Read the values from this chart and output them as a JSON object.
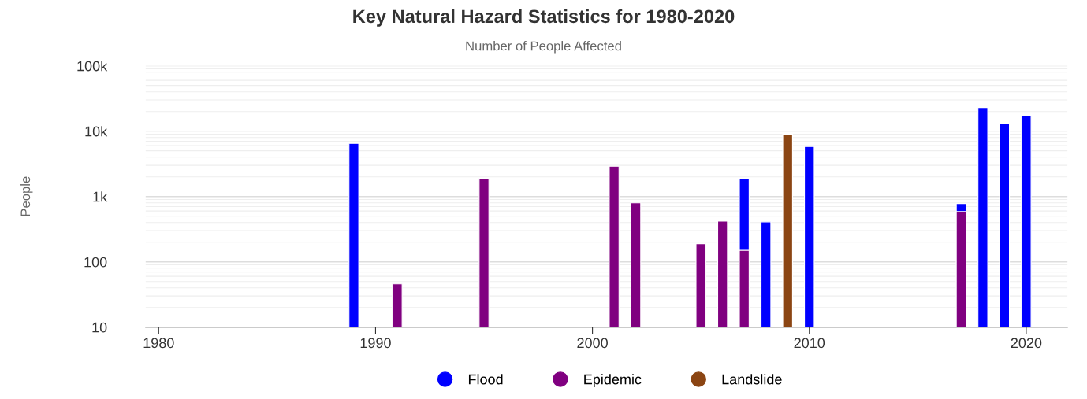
{
  "chart_data": {
    "type": "bar",
    "title": "Key Natural Hazard Statistics for 1980-2020",
    "subtitle": "Number of People Affected",
    "ylabel": "People",
    "x": [
      1989,
      1991,
      1995,
      2001,
      2002,
      2005,
      2006,
      2007,
      2008,
      2009,
      2010,
      2017,
      2018,
      2019,
      2020
    ],
    "series": [
      {
        "name": "Flood",
        "color": "#0000ff",
        "values": [
          6500,
          null,
          null,
          null,
          null,
          null,
          null,
          1900,
          410,
          null,
          5800,
          780,
          23000,
          13000,
          17000
        ]
      },
      {
        "name": "Epidemic",
        "color": "#800080",
        "values": [
          null,
          46,
          1900,
          2900,
          800,
          190,
          420,
          150,
          null,
          null,
          null,
          590,
          null,
          null,
          null
        ]
      },
      {
        "name": "Landslide",
        "color": "#8b4513",
        "values": [
          null,
          null,
          null,
          null,
          null,
          null,
          null,
          null,
          null,
          9000,
          null,
          null,
          null,
          null,
          null
        ]
      }
    ],
    "log": "y",
    "xlim": [
      1979.4,
      2021.9
    ],
    "xticks": [
      1980,
      1990,
      2000,
      2010,
      2020
    ],
    "ylim": [
      10,
      100000
    ],
    "yticks": [
      10,
      100,
      {
        "value": 1000,
        "label": "1k"
      },
      {
        "value": 10000,
        "label": "10k"
      },
      {
        "value": 100000,
        "label": "100k"
      }
    ],
    "grid": "y",
    "legend": "bottom",
    "marker": "circle"
  }
}
